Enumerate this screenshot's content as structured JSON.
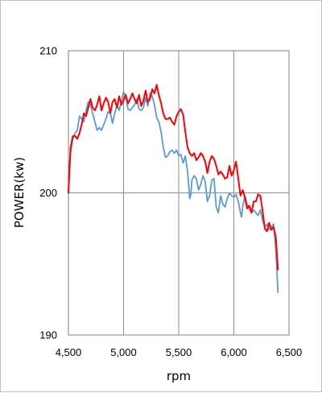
{
  "chart_data": {
    "type": "line",
    "title": "",
    "xlabel": "rpm",
    "ylabel": "POWER(kw)",
    "xlim": [
      4500,
      6500
    ],
    "ylim": [
      190,
      210
    ],
    "xticks": [
      4500,
      5000,
      5500,
      6000,
      6500
    ],
    "xtick_labels": [
      "4,500",
      "5,000",
      "5,500",
      "6,000",
      "6,500"
    ],
    "yticks": [
      190,
      200,
      210
    ],
    "ytick_labels": [
      "190",
      "200",
      "210"
    ],
    "grid": true,
    "legend": "none",
    "series": [
      {
        "color": "#5b9bd5",
        "points": [
          [
            4500,
            200.0
          ],
          [
            4510,
            201.5
          ],
          [
            4520,
            202.8
          ],
          [
            4540,
            203.8
          ],
          [
            4560,
            204.2
          ],
          [
            4580,
            204.4
          ],
          [
            4600,
            205.4
          ],
          [
            4620,
            205.2
          ],
          [
            4640,
            205.0
          ],
          [
            4660,
            205.8
          ],
          [
            4680,
            206.4
          ],
          [
            4700,
            206.2
          ],
          [
            4720,
            205.6
          ],
          [
            4740,
            205.0
          ],
          [
            4760,
            204.4
          ],
          [
            4780,
            204.6
          ],
          [
            4800,
            204.4
          ],
          [
            4820,
            204.8
          ],
          [
            4840,
            205.2
          ],
          [
            4860,
            205.7
          ],
          [
            4880,
            205.6
          ],
          [
            4900,
            204.9
          ],
          [
            4920,
            205.6
          ],
          [
            4940,
            206.2
          ],
          [
            4960,
            205.8
          ],
          [
            4980,
            206.4
          ],
          [
            5000,
            207.1
          ],
          [
            5020,
            206.8
          ],
          [
            5040,
            205.9
          ],
          [
            5060,
            205.8
          ],
          [
            5080,
            206.0
          ],
          [
            5100,
            206.2
          ],
          [
            5120,
            206.6
          ],
          [
            5140,
            205.9
          ],
          [
            5160,
            205.8
          ],
          [
            5180,
            206.0
          ],
          [
            5200,
            206.7
          ],
          [
            5220,
            206.1
          ],
          [
            5240,
            207.0
          ],
          [
            5260,
            206.8
          ],
          [
            5280,
            206.2
          ],
          [
            5300,
            205.3
          ],
          [
            5320,
            205.0
          ],
          [
            5340,
            204.3
          ],
          [
            5360,
            203.2
          ],
          [
            5380,
            202.5
          ],
          [
            5400,
            202.6
          ],
          [
            5420,
            202.9
          ],
          [
            5440,
            203.0
          ],
          [
            5460,
            202.8
          ],
          [
            5480,
            203.0
          ],
          [
            5500,
            202.6
          ],
          [
            5520,
            202.7
          ],
          [
            5540,
            202.1
          ],
          [
            5560,
            202.6
          ],
          [
            5580,
            201.5
          ],
          [
            5600,
            199.6
          ],
          [
            5610,
            199.9
          ],
          [
            5620,
            200.9
          ],
          [
            5640,
            201.2
          ],
          [
            5660,
            201.0
          ],
          [
            5680,
            200.2
          ],
          [
            5700,
            200.6
          ],
          [
            5720,
            201.2
          ],
          [
            5740,
            200.8
          ],
          [
            5760,
            199.4
          ],
          [
            5780,
            199.8
          ],
          [
            5800,
            200.9
          ],
          [
            5820,
            201.0
          ],
          [
            5840,
            199.0
          ],
          [
            5860,
            198.6
          ],
          [
            5880,
            199.8
          ],
          [
            5900,
            199.2
          ],
          [
            5920,
            199.0
          ],
          [
            5940,
            199.6
          ],
          [
            5960,
            200.0
          ],
          [
            5980,
            199.8
          ],
          [
            6000,
            199.7
          ],
          [
            6020,
            199.9
          ],
          [
            6040,
            199.4
          ],
          [
            6060,
            198.6
          ],
          [
            6070,
            198.3
          ],
          [
            6080,
            199.0
          ],
          [
            6100,
            199.8
          ],
          [
            6120,
            199.2
          ],
          [
            6140,
            198.9
          ],
          [
            6160,
            198.6
          ],
          [
            6180,
            198.8
          ],
          [
            6200,
            198.6
          ],
          [
            6220,
            198.4
          ],
          [
            6240,
            198.8
          ],
          [
            6260,
            198.1
          ],
          [
            6280,
            197.6
          ],
          [
            6300,
            197.8
          ],
          [
            6320,
            197.4
          ],
          [
            6340,
            197.6
          ],
          [
            6360,
            197.8
          ],
          [
            6380,
            196.0
          ],
          [
            6400,
            193.0
          ]
        ]
      },
      {
        "color": "#ff0000",
        "points": [
          [
            4500,
            200.0
          ],
          [
            4510,
            201.8
          ],
          [
            4520,
            203.2
          ],
          [
            4540,
            204.0
          ],
          [
            4560,
            204.0
          ],
          [
            4580,
            203.8
          ],
          [
            4600,
            204.2
          ],
          [
            4620,
            204.8
          ],
          [
            4640,
            205.6
          ],
          [
            4660,
            205.4
          ],
          [
            4680,
            206.0
          ],
          [
            4700,
            206.6
          ],
          [
            4720,
            206.0
          ],
          [
            4740,
            205.8
          ],
          [
            4760,
            206.2
          ],
          [
            4780,
            206.8
          ],
          [
            4800,
            205.8
          ],
          [
            4820,
            206.3
          ],
          [
            4840,
            206.7
          ],
          [
            4860,
            206.4
          ],
          [
            4880,
            205.6
          ],
          [
            4900,
            206.4
          ],
          [
            4920,
            206.6
          ],
          [
            4940,
            206.0
          ],
          [
            4960,
            206.8
          ],
          [
            4980,
            206.2
          ],
          [
            5000,
            206.5
          ],
          [
            5020,
            206.9
          ],
          [
            5040,
            206.3
          ],
          [
            5060,
            206.6
          ],
          [
            5080,
            207.0
          ],
          [
            5100,
            206.6
          ],
          [
            5120,
            206.3
          ],
          [
            5140,
            206.9
          ],
          [
            5160,
            206.1
          ],
          [
            5180,
            206.5
          ],
          [
            5200,
            207.2
          ],
          [
            5220,
            206.4
          ],
          [
            5240,
            206.6
          ],
          [
            5260,
            207.3
          ],
          [
            5280,
            207.0
          ],
          [
            5300,
            207.6
          ],
          [
            5320,
            206.9
          ],
          [
            5340,
            206.3
          ],
          [
            5360,
            205.6
          ],
          [
            5380,
            205.2
          ],
          [
            5400,
            205.2
          ],
          [
            5420,
            205.3
          ],
          [
            5440,
            205.0
          ],
          [
            5460,
            204.8
          ],
          [
            5480,
            205.4
          ],
          [
            5500,
            205.7
          ],
          [
            5520,
            205.9
          ],
          [
            5540,
            205.5
          ],
          [
            5560,
            204.3
          ],
          [
            5580,
            203.2
          ],
          [
            5600,
            202.8
          ],
          [
            5620,
            202.6
          ],
          [
            5640,
            202.8
          ],
          [
            5660,
            202.3
          ],
          [
            5680,
            202.5
          ],
          [
            5700,
            202.8
          ],
          [
            5720,
            202.6
          ],
          [
            5740,
            202.2
          ],
          [
            5760,
            201.4
          ],
          [
            5780,
            202.2
          ],
          [
            5800,
            202.6
          ],
          [
            5820,
            202.4
          ],
          [
            5840,
            201.9
          ],
          [
            5860,
            201.3
          ],
          [
            5880,
            201.5
          ],
          [
            5900,
            201.3
          ],
          [
            5920,
            201.0
          ],
          [
            5940,
            201.1
          ],
          [
            5960,
            201.9
          ],
          [
            5980,
            201.2
          ],
          [
            6000,
            201.6
          ],
          [
            6020,
            202.2
          ],
          [
            6040,
            201.0
          ],
          [
            6060,
            199.8
          ],
          [
            6080,
            200.2
          ],
          [
            6100,
            199.7
          ],
          [
            6120,
            198.9
          ],
          [
            6140,
            199.1
          ],
          [
            6160,
            198.6
          ],
          [
            6180,
            199.4
          ],
          [
            6200,
            199.4
          ],
          [
            6220,
            199.9
          ],
          [
            6240,
            199.8
          ],
          [
            6260,
            198.8
          ],
          [
            6280,
            197.5
          ],
          [
            6300,
            197.3
          ],
          [
            6320,
            197.9
          ],
          [
            6340,
            197.4
          ],
          [
            6360,
            197.6
          ],
          [
            6380,
            196.9
          ],
          [
            6400,
            194.6
          ]
        ]
      }
    ]
  }
}
